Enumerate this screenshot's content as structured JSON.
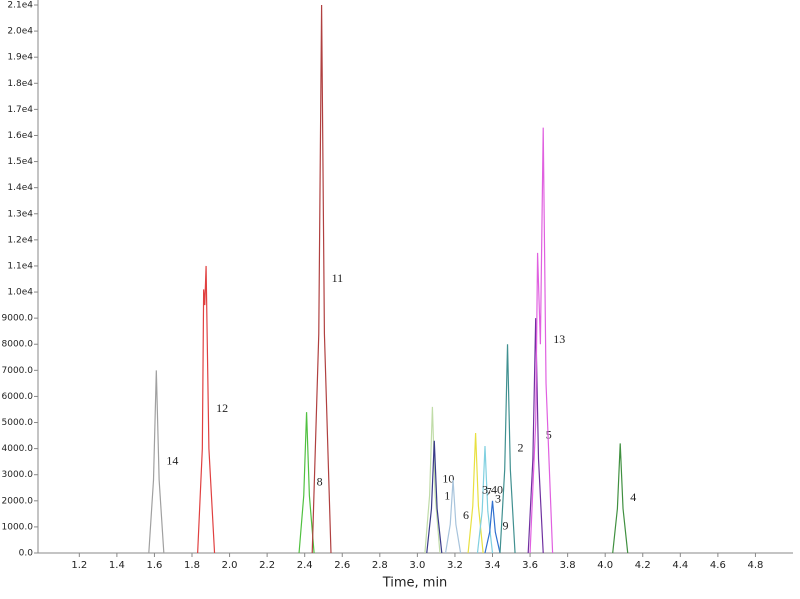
{
  "chart_data": {
    "type": "line",
    "xlabel": "Time, min",
    "xlim": [
      0.98,
      5.0
    ],
    "ylim": [
      0,
      21000
    ],
    "xticks": [
      1.2,
      1.4,
      1.6,
      1.8,
      {
        "value": 2,
        "label": "2.0"
      },
      2.2,
      2.4,
      2.6,
      2.8,
      {
        "value": 3,
        "label": "3.0"
      },
      3.2,
      3.4,
      3.6,
      3.8,
      {
        "value": 4,
        "label": "4.0"
      },
      4.2,
      4.4,
      4.6,
      4.8
    ],
    "yticks": [
      {
        "value": 0,
        "label": "0.0"
      },
      {
        "value": 1000,
        "label": "1000.0"
      },
      {
        "value": 2000,
        "label": "2000.0"
      },
      {
        "value": 3000,
        "label": "3000.0"
      },
      {
        "value": 4000,
        "label": "4000.0"
      },
      {
        "value": 5000,
        "label": "5000.0"
      },
      {
        "value": 6000,
        "label": "6000.0"
      },
      {
        "value": 7000,
        "label": "7000.0"
      },
      {
        "value": 8000,
        "label": "8000.0"
      },
      {
        "value": 9000,
        "label": "9000.0"
      },
      {
        "value": 10000,
        "label": "1.0e4"
      },
      {
        "value": 11000,
        "label": "1.1e4"
      },
      {
        "value": 12000,
        "label": "1.2e4"
      },
      {
        "value": 13000,
        "label": "1.3e4"
      },
      {
        "value": 14000,
        "label": "1.4e4"
      },
      {
        "value": 15000,
        "label": "1.5e4"
      },
      {
        "value": 16000,
        "label": "1.6e4"
      },
      {
        "value": 17000,
        "label": "1.7e4"
      },
      {
        "value": 18000,
        "label": "1.8e4"
      },
      {
        "value": 19000,
        "label": "1.9e4"
      },
      {
        "value": 20000,
        "label": "2.0e4"
      },
      {
        "value": 21000,
        "label": "2.1e4"
      }
    ],
    "series": [
      {
        "name": "14",
        "color": "#a0a0a0",
        "x": [
          1.57,
          1.595,
          1.61,
          1.625,
          1.65
        ],
        "values": [
          0,
          2800,
          7000,
          2800,
          0
        ]
      },
      {
        "name": "12",
        "color": "#e04040",
        "x": [
          1.83,
          1.855,
          1.862,
          1.868,
          1.875,
          1.89,
          1.92
        ],
        "values": [
          0,
          4000,
          10100,
          9500,
          11000,
          4000,
          0
        ]
      },
      {
        "name": "8",
        "color": "#50c040",
        "x": [
          2.37,
          2.395,
          2.41,
          2.425,
          2.45
        ],
        "values": [
          0,
          2200,
          5400,
          2200,
          0
        ]
      },
      {
        "name": "11",
        "color": "#b04040",
        "x": [
          2.44,
          2.475,
          2.49,
          2.505,
          2.54
        ],
        "values": [
          0,
          8400,
          21000,
          8400,
          0
        ]
      },
      {
        "name": "10",
        "color": "#c0dca8",
        "x": [
          3.04,
          3.065,
          3.08,
          3.095,
          3.12
        ],
        "values": [
          0,
          2200,
          5600,
          2200,
          0
        ]
      },
      {
        "name": "1",
        "color": "#3a3a8a",
        "x": [
          3.05,
          3.075,
          3.09,
          3.105,
          3.13
        ],
        "values": [
          0,
          1700,
          4300,
          1700,
          0
        ]
      },
      {
        "name": "6",
        "color": "#a8c4dc",
        "x": [
          3.15,
          3.175,
          3.19,
          3.205,
          3.23
        ],
        "values": [
          0,
          1100,
          2800,
          1100,
          0
        ]
      },
      {
        "name": "7",
        "color": "#e8e040",
        "x": [
          3.27,
          3.295,
          3.31,
          3.325,
          3.35
        ],
        "values": [
          0,
          1800,
          4600,
          1800,
          0
        ]
      },
      {
        "name": "3",
        "color": "#80d0e0",
        "x": [
          3.32,
          3.345,
          3.36,
          3.375,
          3.4
        ],
        "values": [
          0,
          1600,
          4100,
          1600,
          0
        ]
      },
      {
        "name": "9",
        "color": "#3070d0",
        "apex_label": "3.40",
        "x": [
          3.36,
          3.385,
          3.4,
          3.415,
          3.44
        ],
        "values": [
          0,
          800,
          2000,
          800,
          0
        ]
      },
      {
        "name": "2",
        "color": "#409090",
        "x": [
          3.44,
          3.465,
          3.48,
          3.495,
          3.52
        ],
        "values": [
          0,
          3200,
          8000,
          3200,
          0
        ]
      },
      {
        "name": "5",
        "color": "#7030a0",
        "x": [
          3.59,
          3.615,
          3.63,
          3.645,
          3.67
        ],
        "values": [
          0,
          3600,
          9000,
          3600,
          0
        ]
      },
      {
        "name": "13",
        "color": "#e060e0",
        "x": [
          3.6,
          3.63,
          3.64,
          3.655,
          3.67,
          3.685,
          3.72
        ],
        "values": [
          0,
          5000,
          11500,
          8000,
          16300,
          6500,
          0
        ]
      },
      {
        "name": "4",
        "color": "#409040",
        "x": [
          4.04,
          4.065,
          4.08,
          4.095,
          4.12
        ],
        "values": [
          0,
          1700,
          4200,
          1700,
          0
        ]
      }
    ]
  }
}
